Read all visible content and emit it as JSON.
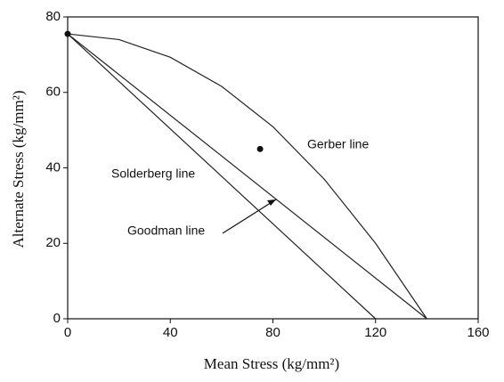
{
  "chart_data": {
    "type": "line",
    "x_label": "Mean Stress (kg/mm²)",
    "y_label": "Alternate Stress (kg/mm²)",
    "xlim": [
      0,
      160
    ],
    "xticks": [
      0,
      40,
      80,
      120,
      160
    ],
    "ylim": [
      0,
      80
    ],
    "yticks": [
      0,
      20,
      40,
      60,
      80
    ],
    "series": [
      {
        "name": "Gerber line",
        "color": "#222",
        "x": [
          0,
          20,
          40,
          60,
          80,
          100,
          120,
          140
        ],
        "values": [
          75.5,
          74.0,
          69.3,
          61.6,
          50.9,
          37.0,
          20.0,
          0
        ]
      },
      {
        "name": "Goodman line",
        "color": "#222",
        "x": [
          0,
          140
        ],
        "values": [
          75.5,
          0
        ]
      },
      {
        "name": "Solderberg line",
        "color": "#222",
        "x": [
          0,
          120
        ],
        "values": [
          75.5,
          0
        ]
      },
      {
        "style": "markers",
        "color": "#111",
        "x": [
          0,
          75
        ],
        "values": [
          75.5,
          45
        ]
      }
    ]
  }
}
